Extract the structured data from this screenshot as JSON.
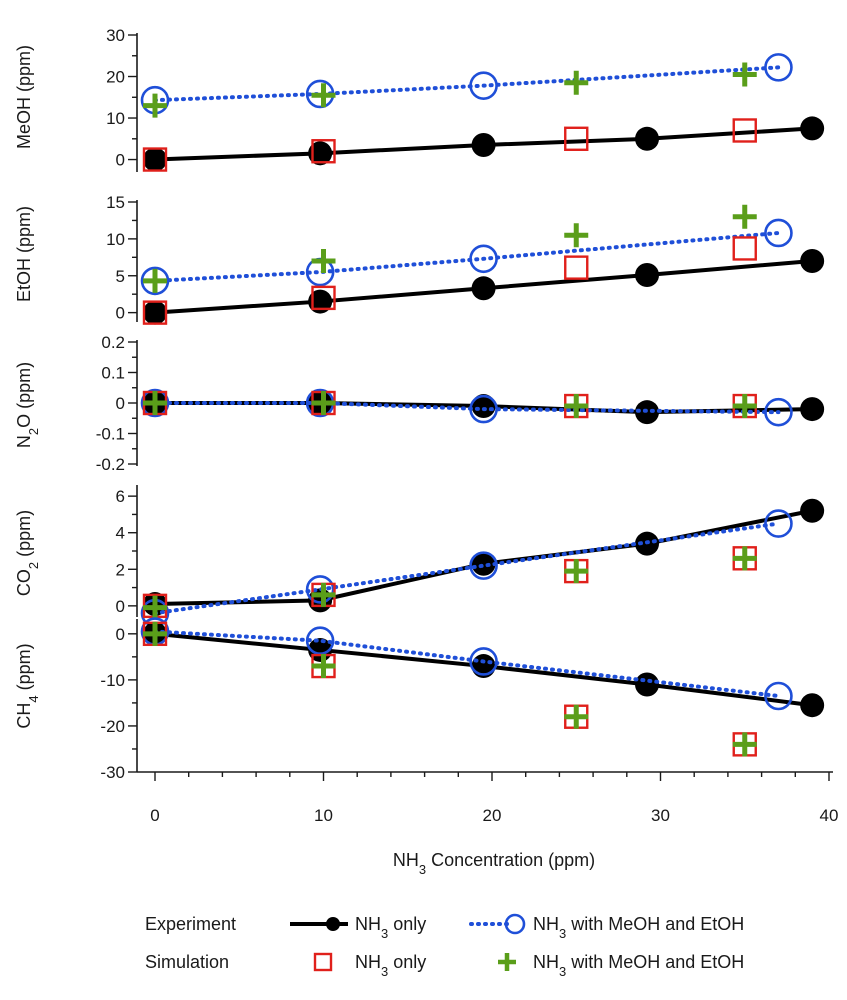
{
  "colors": {
    "experiment_nh3_only": "#000000",
    "experiment_mixed": "#1f4fd8",
    "simulation_nh3_only": "#e0201b",
    "simulation_mixed": "#5a9e1a",
    "axis": "#1a1a1a"
  },
  "legend": {
    "experiment_label": "Experiment",
    "simulation_label": "Simulation",
    "nh3_only_label": "NH3 only",
    "mixed_label": "NH3 with MeOH and EtOH"
  },
  "chart_data": [
    {
      "type": "scatter",
      "ylabel": "MeOH (ppm)",
      "ylim": [
        -3,
        30
      ],
      "yticks": [
        0,
        10,
        20,
        30
      ],
      "series": [
        {
          "name": "Experiment NH3 only",
          "x": [
            0,
            9.8,
            19.5,
            29.2,
            39
          ],
          "values": [
            0,
            1.5,
            3.5,
            5,
            7.5
          ]
        },
        {
          "name": "Experiment NH3 with MeOH and EtOH",
          "x": [
            0,
            9.8,
            19.5,
            37
          ],
          "values": [
            14.3,
            15.8,
            17.8,
            22.2
          ]
        },
        {
          "name": "Simulation NH3 only",
          "x": [
            0,
            10,
            25,
            35
          ],
          "values": [
            0,
            2,
            5,
            7
          ]
        },
        {
          "name": "Simulation NH3 with MeOH and EtOH",
          "x": [
            0,
            10,
            25,
            35
          ],
          "values": [
            13,
            15.5,
            18.5,
            20.5
          ]
        }
      ]
    },
    {
      "type": "scatter",
      "ylabel": "EtOH (ppm)",
      "ylim": [
        -1,
        15
      ],
      "yticks": [
        0,
        5,
        10,
        15
      ],
      "series": [
        {
          "name": "Experiment NH3 only",
          "x": [
            0,
            9.8,
            19.5,
            29.2,
            39
          ],
          "values": [
            0,
            1.5,
            3.3,
            5.1,
            7
          ]
        },
        {
          "name": "Experiment NH3 with MeOH and EtOH",
          "x": [
            0,
            9.8,
            19.5,
            37
          ],
          "values": [
            4.3,
            5.5,
            7.3,
            10.8
          ]
        },
        {
          "name": "Simulation NH3 only",
          "x": [
            0,
            10,
            25,
            35
          ],
          "values": [
            0,
            2,
            6.1,
            8.7
          ]
        },
        {
          "name": "Simulation NH3 with MeOH and EtOH",
          "x": [
            0,
            10,
            25,
            35
          ],
          "values": [
            4.3,
            7,
            10.5,
            13
          ]
        }
      ]
    },
    {
      "type": "scatter",
      "ylabel": "N2O (ppm)",
      "ylim": [
        -0.2,
        0.2
      ],
      "yticks": [
        -0.2,
        -0.1,
        0.0,
        0.1,
        0.2
      ],
      "series": [
        {
          "name": "Experiment NH3 only",
          "x": [
            0,
            9.8,
            19.5,
            29.2,
            39
          ],
          "values": [
            0,
            0,
            -0.01,
            -0.03,
            -0.02
          ]
        },
        {
          "name": "Experiment NH3 with MeOH and EtOH",
          "x": [
            0,
            9.8,
            19.5,
            37
          ],
          "values": [
            0,
            0,
            -0.02,
            -0.03
          ]
        },
        {
          "name": "Simulation NH3 only",
          "x": [
            0,
            10,
            25,
            35
          ],
          "values": [
            0,
            0,
            -0.01,
            -0.01
          ]
        },
        {
          "name": "Simulation NH3 with MeOH and EtOH",
          "x": [
            0,
            10,
            25,
            35
          ],
          "values": [
            0,
            0,
            -0.01,
            -0.01
          ]
        }
      ]
    },
    {
      "type": "scatter",
      "ylabel": "CO2 (ppm)",
      "ylim": [
        -0.5,
        6.5
      ],
      "yticks": [
        0,
        2,
        4,
        6
      ],
      "series": [
        {
          "name": "Experiment NH3 only",
          "x": [
            0,
            9.8,
            19.5,
            29.2,
            39
          ],
          "values": [
            0.1,
            0.3,
            2.3,
            3.4,
            5.2
          ]
        },
        {
          "name": "Experiment NH3 with MeOH and EtOH",
          "x": [
            0,
            9.8,
            19.5,
            37
          ],
          "values": [
            -0.4,
            0.9,
            2.2,
            4.5
          ]
        },
        {
          "name": "Simulation NH3 only",
          "x": [
            0,
            10,
            25,
            35
          ],
          "values": [
            0,
            0.6,
            1.9,
            2.6
          ]
        },
        {
          "name": "Simulation NH3 with MeOH and EtOH",
          "x": [
            0,
            10,
            25,
            35
          ],
          "values": [
            -0.1,
            0.6,
            1.9,
            2.6
          ]
        }
      ]
    },
    {
      "type": "scatter",
      "ylabel": "CH4 (ppm)",
      "ylim": [
        -30,
        3
      ],
      "yticks": [
        -30,
        -20,
        -10,
        0
      ],
      "xlabel": "NH3 Concentration (ppm)",
      "xlim": [
        0,
        40
      ],
      "xticks": [
        0,
        10,
        20,
        30,
        40
      ],
      "series": [
        {
          "name": "Experiment NH3 only",
          "x": [
            0,
            9.8,
            19.5,
            29.2,
            39
          ],
          "values": [
            0,
            -3.5,
            -7,
            -11,
            -15.5
          ]
        },
        {
          "name": "Experiment NH3 with MeOH and EtOH",
          "x": [
            0,
            9.8,
            19.5,
            37
          ],
          "values": [
            0.5,
            -1.5,
            -6,
            -13.5
          ]
        },
        {
          "name": "Simulation NH3 only",
          "x": [
            0,
            10,
            25,
            35
          ],
          "values": [
            0,
            -7,
            -18,
            -24
          ]
        },
        {
          "name": "Simulation NH3 with MeOH and EtOH",
          "x": [
            0,
            10,
            25,
            35
          ],
          "values": [
            0,
            -7,
            -18,
            -24
          ]
        }
      ]
    }
  ]
}
